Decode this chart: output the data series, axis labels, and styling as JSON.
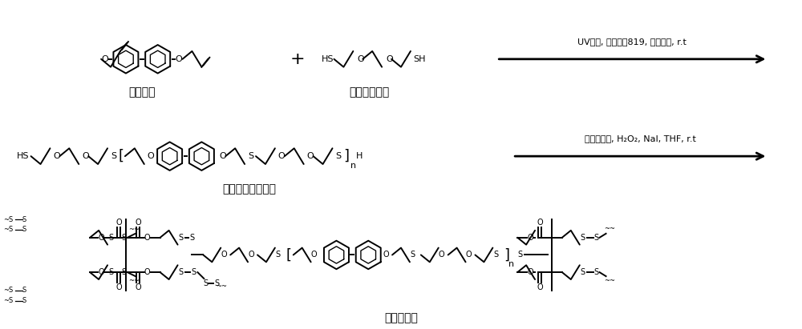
{
  "background_color": "#ffffff",
  "fig_width": 10.0,
  "fig_height": 4.11,
  "dpi": 100,
  "reaction1_label": "UV光照, 光引发刑819, 二氯甲烷, r.t",
  "reaction2_label": "屯基交联剂, H₂O₂, NaI, THF, r.t",
  "label1": "液晶单体",
  "label2": "二硫基化合物",
  "label3": "双硫醇液晶预聚体",
  "label4": "液晶弹性体"
}
